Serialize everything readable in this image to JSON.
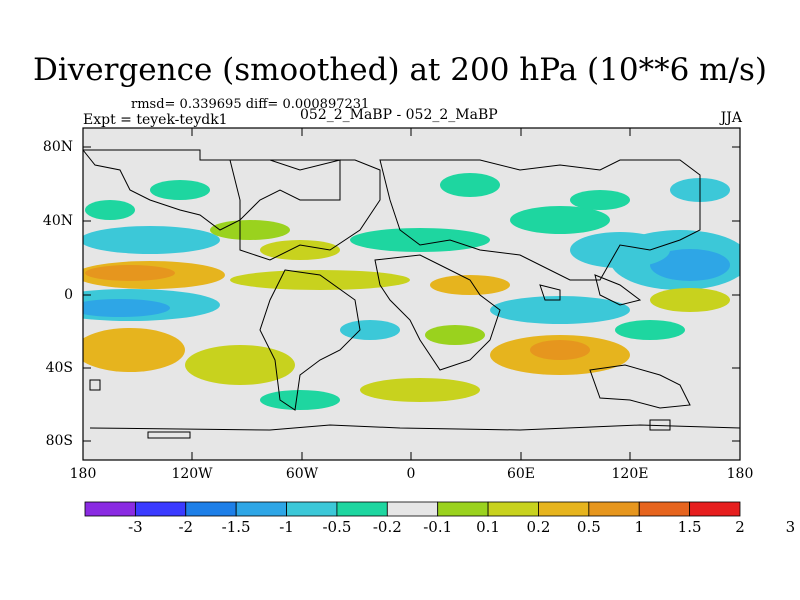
{
  "title": "Divergence (smoothed) at 200 hPa (10**6 m/s)",
  "stats": "rmsd= 0.339695 diff= 0.000897231",
  "experiment": "Expt = teyek-teydk1",
  "comparison": "052_2_MaBP - 052_2_MaBP",
  "season": "JJA",
  "lat_labels": [
    "80N",
    "40N",
    "0",
    "40S",
    "80S"
  ],
  "lon_labels": [
    "180",
    "120W",
    "60W",
    "0",
    "60E",
    "120E",
    "180"
  ],
  "colorbar": {
    "labels": [
      "-3",
      "-2",
      "-1.5",
      "-1",
      "-0.5",
      "-0.2",
      "-0.1",
      "0.1",
      "0.2",
      "0.5",
      "1",
      "1.5",
      "2",
      "3"
    ],
    "colors": [
      "#8a2be2",
      "#3a3aff",
      "#1e7fe8",
      "#2ea6e6",
      "#3cc8d8",
      "#1ed6a0",
      "#e6e6e6",
      "#9ad21e",
      "#c8d21e",
      "#e6b41e",
      "#e6961e",
      "#e6641e",
      "#e61e1e"
    ]
  },
  "field_colors": {
    "neutral": "#e6e6e6",
    "cyan": "#3cc8d8",
    "blue": "#2ea6e6",
    "green": "#1ed6a0",
    "lime": "#9ad21e",
    "olive": "#c8d21e",
    "orange": "#e6b41e",
    "darkorange": "#e6961e"
  }
}
